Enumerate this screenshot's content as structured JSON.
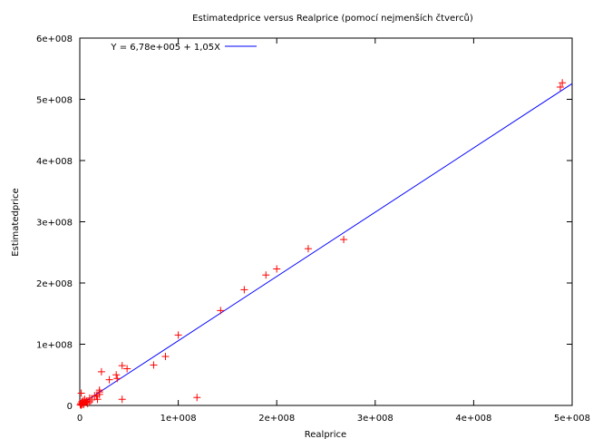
{
  "chart_data": {
    "type": "scatter",
    "title": "Estimatedprice versus Realprice (pomocí nejmenších čtverců)",
    "xlabel": "Realprice",
    "ylabel": "Estimatedprice",
    "xlim": [
      0,
      500000000
    ],
    "ylim": [
      0,
      600000000
    ],
    "x_ticks": [
      {
        "value": 0,
        "label": "0"
      },
      {
        "value": 100000000,
        "label": "1e+008"
      },
      {
        "value": 200000000,
        "label": "2e+008"
      },
      {
        "value": 300000000,
        "label": "3e+008"
      },
      {
        "value": 400000000,
        "label": "4e+008"
      },
      {
        "value": 500000000,
        "label": "5e+008"
      }
    ],
    "y_ticks": [
      {
        "value": 0,
        "label": "0"
      },
      {
        "value": 100000000,
        "label": "1e+008"
      },
      {
        "value": 200000000,
        "label": "2e+008"
      },
      {
        "value": 300000000,
        "label": "3e+008"
      },
      {
        "value": 400000000,
        "label": "4e+008"
      },
      {
        "value": 500000000,
        "label": "5e+008"
      },
      {
        "value": 600000000,
        "label": "6e+008"
      }
    ],
    "grid": false,
    "legend_position": "top-left",
    "series": [
      {
        "marker": "+",
        "color": "#ff0000",
        "points": [
          [
            500000,
            1000000
          ],
          [
            1000000,
            3000000
          ],
          [
            1500000,
            500000
          ],
          [
            2000000,
            6000000
          ],
          [
            2500000,
            2000000
          ],
          [
            3000000,
            4000000
          ],
          [
            3500000,
            8000000
          ],
          [
            4000000,
            1500000
          ],
          [
            5000000,
            10000000
          ],
          [
            6000000,
            5000000
          ],
          [
            7000000,
            7000000
          ],
          [
            8000000,
            3000000
          ],
          [
            1500000,
            20000000
          ],
          [
            10000000,
            12000000
          ],
          [
            12000000,
            9000000
          ],
          [
            15000000,
            16000000
          ],
          [
            18000000,
            10000000
          ],
          [
            20000000,
            22000000
          ],
          [
            17000000,
            15000000
          ],
          [
            10000000,
            6000000
          ],
          [
            20000000,
            18000000
          ],
          [
            20000000,
            25000000
          ],
          [
            22000000,
            55000000
          ],
          [
            30000000,
            42000000
          ],
          [
            37000000,
            50000000
          ],
          [
            38000000,
            44000000
          ],
          [
            43000000,
            65000000
          ],
          [
            48000000,
            60000000
          ],
          [
            43000000,
            10000000
          ],
          [
            75000000,
            66000000
          ],
          [
            87000000,
            80000000
          ],
          [
            100000000,
            115000000
          ],
          [
            119000000,
            13000000
          ],
          [
            143000000,
            155000000
          ],
          [
            167000000,
            189000000
          ],
          [
            189000000,
            213000000
          ],
          [
            200000000,
            223000000
          ],
          [
            232000000,
            256000000
          ],
          [
            268000000,
            271000000
          ],
          [
            488000000,
            520000000
          ],
          [
            490000000,
            527000000
          ]
        ]
      }
    ],
    "fit": {
      "label": "Y = 6,78e+005 + 1,05X",
      "intercept": 678000,
      "slope": 1.05,
      "color": "#0000ff"
    }
  }
}
